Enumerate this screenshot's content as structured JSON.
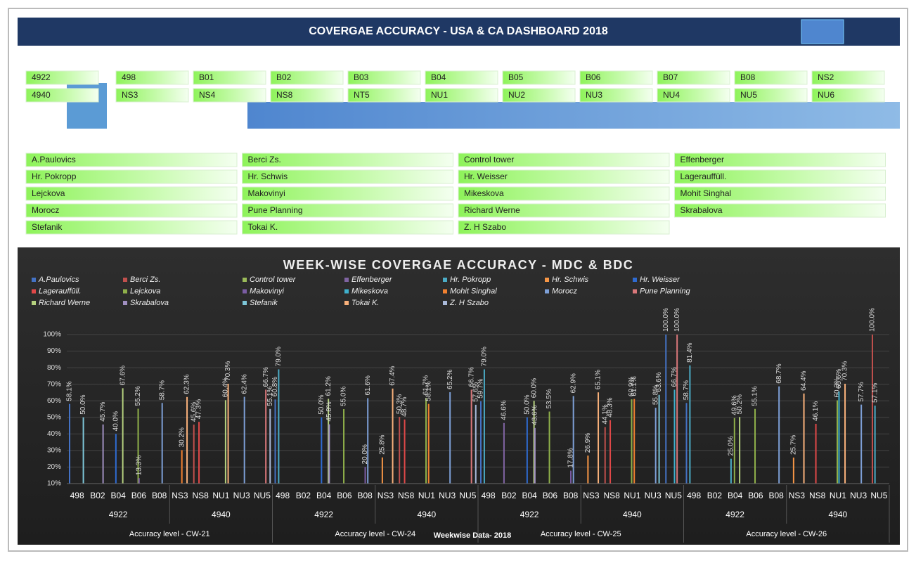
{
  "header": {
    "title": "COVERGAE ACCURACY - USA & CA  DASHBOARD 2018"
  },
  "plant_slicer": {
    "items": [
      "4922",
      "4940"
    ]
  },
  "material_slicer": {
    "items": [
      "498",
      "B01",
      "B02",
      "B03",
      "B04",
      "B05",
      "B06",
      "B07",
      "B08",
      "NS2",
      "NS3",
      "NS4",
      "NS8",
      "NT5",
      "NU1",
      "NU2",
      "NU3",
      "NU4",
      "NU5",
      "NU6"
    ]
  },
  "planner_slicer": {
    "items": [
      "A.Paulovics",
      "Berci Zs.",
      "Control tower",
      "Effenberger",
      "Hr. Pokropp",
      "Hr. Schwis",
      "Hr. Weisser",
      "Lagerauffüll.",
      "Lejckova",
      "Makovinyi",
      "Mikeskova",
      "Mohit Singhal",
      "Morocz",
      "Pune Planning",
      "Richard Werne",
      "Skrabalova",
      "Stefanik",
      "Tokai K.",
      "Z. H Szabo"
    ]
  },
  "chart_data": {
    "type": "bar",
    "title": "WEEK-WISE COVERGAE ACCURACY - MDC & BDC",
    "xlabel": "Weekwise Data- 2018",
    "ylim": [
      10,
      100
    ],
    "yticks": [
      {
        "value": 10,
        "label": "10%"
      },
      {
        "value": 20,
        "label": "20%"
      },
      {
        "value": 30,
        "label": "30%"
      },
      {
        "value": 40,
        "label": "40%"
      },
      {
        "value": 50,
        "label": "50%"
      },
      {
        "value": 60,
        "label": "60%"
      },
      {
        "value": 70,
        "label": "70%"
      },
      {
        "value": 80,
        "label": "80%"
      },
      {
        "value": 90,
        "label": "90%"
      },
      {
        "value": 100,
        "label": "100%"
      }
    ],
    "grid": true,
    "legend": [
      {
        "name": "A.Paulovics",
        "color": "#4472c4"
      },
      {
        "name": "Berci Zs.",
        "color": "#c0504d"
      },
      {
        "name": "Control tower",
        "color": "#9bbb59"
      },
      {
        "name": "Effenberger",
        "color": "#8064a2"
      },
      {
        "name": "Hr. Pokropp",
        "color": "#4bacc6"
      },
      {
        "name": "Hr. Schwis",
        "color": "#f79646"
      },
      {
        "name": "Hr. Weisser",
        "color": "#2f6bd1"
      },
      {
        "name": "Lagerauffüll.",
        "color": "#e04848"
      },
      {
        "name": "Lejckova",
        "color": "#8fb04a"
      },
      {
        "name": "Makovinyi",
        "color": "#7a5ca3"
      },
      {
        "name": "Mikeskova",
        "color": "#3fb0cc"
      },
      {
        "name": "Mohit Singhal",
        "color": "#f08030"
      },
      {
        "name": "Morocz",
        "color": "#7d9fd6"
      },
      {
        "name": "Pune Planning",
        "color": "#d9777a"
      },
      {
        "name": "Richard Werne",
        "color": "#b5d17e"
      },
      {
        "name": "Skrabalova",
        "color": "#a08fc0"
      },
      {
        "name": "Stefanik",
        "color": "#7dc6d8"
      },
      {
        "name": "Tokai K.",
        "color": "#f8b07a"
      },
      {
        "name": "Z. H Szabo",
        "color": "#a9b9d9"
      }
    ],
    "levels": [
      {
        "label": "Accuracy level - CW-21",
        "groups": [
          {
            "label": "4922",
            "categories": [
              {
                "label": "498",
                "bars": [
                  {
                    "name": "A.Paulovics",
                    "value": 58.1,
                    "label": "58.1%"
                  },
                  {
                    "name": "Stefanik",
                    "value": 50.0,
                    "label": "50.0%"
                  }
                ]
              },
              {
                "label": "B02",
                "bars": [
                  {
                    "name": "Skrabalova",
                    "value": 45.7,
                    "label": "45.7%"
                  }
                ]
              },
              {
                "label": "B04",
                "bars": [
                  {
                    "name": "Hr. Weisser",
                    "value": 40.0,
                    "label": "40.0%"
                  },
                  {
                    "name": "Richard Werne",
                    "value": 67.6,
                    "label": "67.6%"
                  }
                ]
              },
              {
                "label": "B06",
                "bars": [
                  {
                    "name": "Lejckova",
                    "value": 55.2,
                    "label": "55.2%"
                  },
                  {
                    "name": "Makovinyi",
                    "value": 13.3,
                    "label": "13.3%"
                  }
                ]
              },
              {
                "label": "B08",
                "bars": [
                  {
                    "name": "Morocz",
                    "value": 58.7,
                    "label": "58.7%"
                  }
                ]
              }
            ]
          },
          {
            "label": "4940",
            "categories": [
              {
                "label": "NS3",
                "bars": [
                  {
                    "name": "Mohit Singhal",
                    "value": 30.2,
                    "label": "30.2%"
                  },
                  {
                    "name": "Tokai K.",
                    "value": 62.3,
                    "label": "62.3%"
                  }
                ]
              },
              {
                "label": "NS8",
                "bars": [
                  {
                    "name": "Berci Zs.",
                    "value": 45.6,
                    "label": "45.6%"
                  },
                  {
                    "name": "Lagerauffüll.",
                    "value": 47.3,
                    "label": "47.3%"
                  }
                ]
              },
              {
                "label": "NU1",
                "bars": [
                  {
                    "name": "Richard Werne",
                    "value": 60.4,
                    "label": "60.4%"
                  },
                  {
                    "name": "Tokai K.",
                    "value": 70.3,
                    "label": "70.3%"
                  }
                ]
              },
              {
                "label": "NU3",
                "bars": [
                  {
                    "name": "Morocz",
                    "value": 62.4,
                    "label": "62.4%"
                  }
                ]
              },
              {
                "label": "NU5",
                "bars": [
                  {
                    "name": "Pune Planning",
                    "value": 66.7,
                    "label": "66.7%"
                  },
                  {
                    "name": "Z. H Szabo",
                    "value": 55.1,
                    "label": "55.1%"
                  }
                ]
              }
            ]
          }
        ]
      },
      {
        "label": "Accuracy level - CW-24",
        "groups": [
          {
            "label": "4922",
            "categories": [
              {
                "label": "498",
                "bars": [
                  {
                    "name": "A.Paulovics",
                    "value": 60.8,
                    "label": "60.8%"
                  },
                  {
                    "name": "Hr. Pokropp",
                    "value": 79.0,
                    "label": "79.0%"
                  }
                ]
              },
              {
                "label": "B02",
                "bars": []
              },
              {
                "label": "B04",
                "bars": [
                  {
                    "name": "Hr. Weisser",
                    "value": 50.0,
                    "label": "50.0%"
                  },
                  {
                    "name": "Richard Werne",
                    "value": 61.2,
                    "label": "61.2%"
                  },
                  {
                    "name": "Skrabalova",
                    "value": 45.8,
                    "label": "45.8%"
                  }
                ]
              },
              {
                "label": "B06",
                "bars": [
                  {
                    "name": "Lejckova",
                    "value": 55.0,
                    "label": "55.0%"
                  }
                ]
              },
              {
                "label": "B08",
                "bars": [
                  {
                    "name": "Makovinyi",
                    "value": 20.0,
                    "label": "20.0%"
                  },
                  {
                    "name": "Morocz",
                    "value": 61.6,
                    "label": "61.6%"
                  }
                ]
              }
            ]
          },
          {
            "label": "4940",
            "categories": [
              {
                "label": "NS3",
                "bars": [
                  {
                    "name": "Hr. Schwis",
                    "value": 25.8,
                    "label": "25.8%"
                  },
                  {
                    "name": "Tokai K.",
                    "value": 67.4,
                    "label": "67.4%"
                  }
                ]
              },
              {
                "label": "NS8",
                "bars": [
                  {
                    "name": "Berci Zs.",
                    "value": 50.3,
                    "label": "50.3%"
                  },
                  {
                    "name": "Lagerauffüll.",
                    "value": 48.7,
                    "label": "48.7%"
                  }
                ]
              },
              {
                "label": "NU1",
                "bars": [
                  {
                    "name": "Lejckova",
                    "value": 61.7,
                    "label": "61.7%"
                  },
                  {
                    "name": "Mohit Singhal",
                    "value": 58.1,
                    "label": "58.1%"
                  }
                ]
              },
              {
                "label": "NU3",
                "bars": [
                  {
                    "name": "Morocz",
                    "value": 65.2,
                    "label": "65.2%"
                  }
                ]
              },
              {
                "label": "NU5",
                "bars": [
                  {
                    "name": "Pune Planning",
                    "value": 66.7,
                    "label": "66.7%"
                  },
                  {
                    "name": "Z. H Szabo",
                    "value": 57.6,
                    "label": "57.6%"
                  }
                ]
              }
            ]
          }
        ]
      },
      {
        "label": "Accuracy level - CW-25",
        "groups": [
          {
            "label": "4922",
            "categories": [
              {
                "label": "498",
                "bars": [
                  {
                    "name": "A.Paulovics",
                    "value": 59.7,
                    "label": "59.7%"
                  },
                  {
                    "name": "Hr. Pokropp",
                    "value": 79.0,
                    "label": "79.0%"
                  }
                ]
              },
              {
                "label": "B02",
                "bars": [
                  {
                    "name": "Effenberger",
                    "value": 46.6,
                    "label": "46.6%"
                  }
                ]
              },
              {
                "label": "B04",
                "bars": [
                  {
                    "name": "Hr. Weisser",
                    "value": 50.0,
                    "label": "50.0%"
                  },
                  {
                    "name": "Richard Werne",
                    "value": 60.0,
                    "label": "60.0%"
                  },
                  {
                    "name": "Skrabalova",
                    "value": 43.6,
                    "label": "43.6%"
                  }
                ]
              },
              {
                "label": "B06",
                "bars": [
                  {
                    "name": "Lejckova",
                    "value": 53.5,
                    "label": "53.5%"
                  }
                ]
              },
              {
                "label": "B08",
                "bars": [
                  {
                    "name": "Makovinyi",
                    "value": 17.8,
                    "label": "17.8%"
                  },
                  {
                    "name": "Morocz",
                    "value": 62.9,
                    "label": "62.9%"
                  }
                ]
              }
            ]
          },
          {
            "label": "4940",
            "categories": [
              {
                "label": "NS3",
                "bars": [
                  {
                    "name": "Hr. Schwis",
                    "value": 26.9,
                    "label": "26.9%"
                  },
                  {
                    "name": "Tokai K.",
                    "value": 65.1,
                    "label": "65.1%"
                  }
                ]
              },
              {
                "label": "NS8",
                "bars": [
                  {
                    "name": "Berci Zs.",
                    "value": 44.1,
                    "label": "44.1%"
                  },
                  {
                    "name": "Lagerauffüll.",
                    "value": 48.3,
                    "label": "48.3%"
                  }
                ]
              },
              {
                "label": "NU1",
                "bars": [
                  {
                    "name": "Lejckova",
                    "value": 60.9,
                    "label": "60.9%"
                  },
                  {
                    "name": "Mohit Singhal",
                    "value": 61.1,
                    "label": "61.1%"
                  }
                ]
              },
              {
                "label": "NU3",
                "bars": [
                  {
                    "name": "Morocz",
                    "value": 55.8,
                    "label": "55.8%"
                  },
                  {
                    "name": "Stefanik",
                    "value": 63.6,
                    "label": "63.6%"
                  }
                ]
              },
              {
                "label": "NU5",
                "bars": [
                  {
                    "name": "A.Paulovics",
                    "value": 100.0,
                    "label": "100.0%"
                  },
                  {
                    "name": "Mikeskova",
                    "value": 66.7,
                    "label": "66.7%"
                  },
                  {
                    "name": "Pune Planning",
                    "value": 100.0,
                    "label": "100.0%"
                  }
                ]
              }
            ]
          }
        ]
      },
      {
        "label": "Accuracy level - CW-26",
        "groups": [
          {
            "label": "4922",
            "categories": [
              {
                "label": "498",
                "bars": [
                  {
                    "name": "A.Paulovics",
                    "value": 58.7,
                    "label": "58.7%"
                  },
                  {
                    "name": "Hr. Pokropp",
                    "value": 81.4,
                    "label": "81.4%"
                  }
                ]
              },
              {
                "label": "B02",
                "bars": []
              },
              {
                "label": "B04",
                "bars": [
                  {
                    "name": "Hr. Pokropp",
                    "value": 25.0,
                    "label": "25.0%"
                  },
                  {
                    "name": "Lejckova",
                    "value": 49.6,
                    "label": "49.6%"
                  },
                  {
                    "name": "Richard Werne",
                    "value": 50.2,
                    "label": "50.2%"
                  }
                ]
              },
              {
                "label": "B06",
                "bars": [
                  {
                    "name": "Lejckova",
                    "value": 55.1,
                    "label": "55.1%"
                  }
                ]
              },
              {
                "label": "B08",
                "bars": [
                  {
                    "name": "Morocz",
                    "value": 68.7,
                    "label": "68.7%"
                  }
                ]
              }
            ]
          },
          {
            "label": "4940",
            "categories": [
              {
                "label": "NS3",
                "bars": [
                  {
                    "name": "Hr. Schwis",
                    "value": 25.7,
                    "label": "25.7%"
                  },
                  {
                    "name": "Tokai K.",
                    "value": 64.4,
                    "label": "64.4%"
                  }
                ]
              },
              {
                "label": "NS8",
                "bars": [
                  {
                    "name": "Lagerauffüll.",
                    "value": 46.1,
                    "label": "46.1%"
                  }
                ]
              },
              {
                "label": "NU1",
                "bars": [
                  {
                    "name": "Lejckova",
                    "value": 60.3,
                    "label": "60.3%"
                  },
                  {
                    "name": "Mikeskova",
                    "value": 65.6,
                    "label": "65.6%"
                  },
                  {
                    "name": "Tokai K.",
                    "value": 70.3,
                    "label": "70.3%"
                  }
                ]
              },
              {
                "label": "NU3",
                "bars": [
                  {
                    "name": "Morocz",
                    "value": 57.7,
                    "label": "57.7%"
                  }
                ]
              },
              {
                "label": "NU5",
                "bars": [
                  {
                    "name": "Berci Zs.",
                    "value": 100.0,
                    "label": "100.0%"
                  },
                  {
                    "name": "Hr. Pokropp",
                    "value": 57.1,
                    "label": "57.1%"
                  }
                ]
              }
            ]
          }
        ]
      }
    ]
  }
}
